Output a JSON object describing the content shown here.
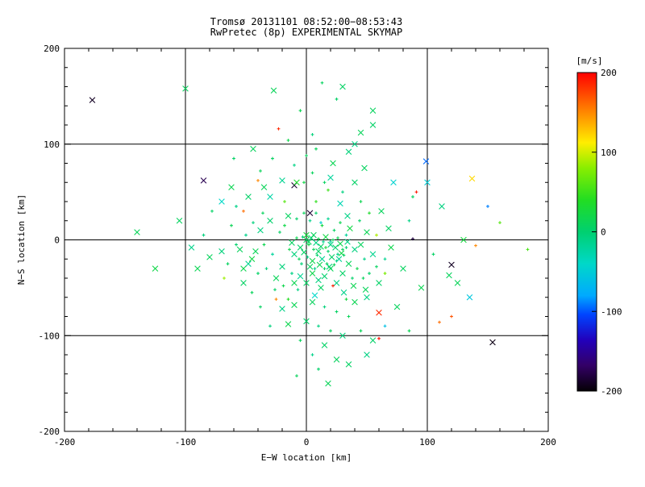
{
  "title": {
    "line1": "Tromsø 20131101 08:52:00−08:53:43",
    "line2": "RwPretec (8p) EXPERIMENTAL SKYMAP"
  },
  "axes": {
    "xlabel": "E−W location [km]",
    "ylabel": "N−S location [km]",
    "xlim": [
      -200,
      200
    ],
    "ylim": [
      -200,
      200
    ],
    "xticks": [
      -200,
      -100,
      0,
      100,
      200
    ],
    "yticks": [
      -200,
      -100,
      0,
      100,
      200
    ],
    "grid_lines": [
      -100,
      0,
      100
    ]
  },
  "colorbar": {
    "label": "[m/s]",
    "label_color": "#ee2200",
    "ticks": [
      200,
      100,
      0,
      -100,
      -200
    ],
    "min": -200,
    "max": 200,
    "stops": [
      {
        "v": 200,
        "c": "#ff0000"
      },
      {
        "v": 150,
        "c": "#ff8800"
      },
      {
        "v": 112,
        "c": "#ffee00"
      },
      {
        "v": 80,
        "c": "#88ee00"
      },
      {
        "v": 40,
        "c": "#22dd22"
      },
      {
        "v": 0,
        "c": "#00d070"
      },
      {
        "v": -40,
        "c": "#00d8c8"
      },
      {
        "v": -80,
        "c": "#00aaff"
      },
      {
        "v": -104,
        "c": "#0044ff"
      },
      {
        "v": -136,
        "c": "#2200bb"
      },
      {
        "v": -168,
        "c": "#330066"
      },
      {
        "v": -200,
        "c": "#050005"
      }
    ]
  },
  "chart_data": {
    "type": "scatter",
    "title": "Tromsø 20131101 08:52:00−08:53:43 — RwPretec (8p) EXPERIMENTAL SKYMAP",
    "xlabel": "E−W location [km]",
    "ylabel": "N−S location [km]",
    "xlim": [
      -200,
      200
    ],
    "ylim": [
      -200,
      200
    ],
    "value_unit": "m/s",
    "value_range": [
      -200,
      200
    ],
    "marker_codes": {
      "0": "plus",
      "1": "cross"
    },
    "point_format": [
      "x_km",
      "y_km",
      "velocity_ms",
      "marker"
    ],
    "points": [
      [
        -12,
        -3,
        8,
        1
      ],
      [
        -8,
        2,
        15,
        0
      ],
      [
        -5,
        -8,
        5,
        1
      ],
      [
        -3,
        3,
        -5,
        0
      ],
      [
        0,
        0,
        10,
        1
      ],
      [
        2,
        -5,
        20,
        0
      ],
      [
        4,
        2,
        0,
        1
      ],
      [
        6,
        -10,
        12,
        0
      ],
      [
        8,
        -3,
        -8,
        1
      ],
      [
        10,
        1,
        18,
        0
      ],
      [
        12,
        -7,
        6,
        1
      ],
      [
        14,
        -2,
        -12,
        0
      ],
      [
        16,
        3,
        22,
        1
      ],
      [
        18,
        -12,
        4,
        0
      ],
      [
        20,
        -5,
        -6,
        1
      ],
      [
        22,
        0,
        14,
        0
      ],
      [
        24,
        -8,
        2,
        1
      ],
      [
        26,
        -15,
        -10,
        0
      ],
      [
        28,
        -4,
        16,
        1
      ],
      [
        30,
        -10,
        8,
        0
      ],
      [
        -10,
        -15,
        -4,
        1
      ],
      [
        -6,
        -20,
        12,
        0
      ],
      [
        -2,
        -13,
        6,
        1
      ],
      [
        1,
        -18,
        -8,
        0
      ],
      [
        5,
        -22,
        18,
        1
      ],
      [
        9,
        -16,
        2,
        0
      ],
      [
        13,
        -20,
        -14,
        1
      ],
      [
        17,
        -25,
        10,
        0
      ],
      [
        21,
        -18,
        4,
        1
      ],
      [
        25,
        -22,
        -6,
        0
      ],
      [
        29,
        -14,
        20,
        1
      ],
      [
        33,
        -8,
        0,
        0
      ],
      [
        3,
        -28,
        8,
        1
      ],
      [
        7,
        -30,
        -12,
        0
      ],
      [
        11,
        -26,
        15,
        1
      ],
      [
        15,
        -30,
        5,
        0
      ],
      [
        19,
        -28,
        -5,
        1
      ],
      [
        23,
        -26,
        12,
        0
      ],
      [
        27,
        -20,
        -15,
        1
      ],
      [
        31,
        -16,
        8,
        0
      ],
      [
        0,
        5,
        25,
        1
      ],
      [
        -4,
        -25,
        -3,
        0
      ],
      [
        6,
        5,
        10,
        1
      ],
      [
        -14,
        -10,
        18,
        0
      ],
      [
        34,
        -2,
        -8,
        1
      ],
      [
        16,
        -8,
        30,
        0
      ],
      [
        10,
        -12,
        5,
        1
      ],
      [
        20,
        -2,
        -18,
        0
      ],
      [
        2,
        -2,
        8,
        1
      ],
      [
        26,
        2,
        14,
        0
      ],
      [
        -55,
        -10,
        10,
        1
      ],
      [
        -50,
        5,
        -12,
        0
      ],
      [
        -45,
        -20,
        22,
        1
      ],
      [
        -40,
        -35,
        5,
        0
      ],
      [
        -38,
        10,
        -8,
        1
      ],
      [
        -35,
        -5,
        16,
        0
      ],
      [
        -30,
        20,
        2,
        1
      ],
      [
        -28,
        -15,
        -20,
        0
      ],
      [
        -25,
        -40,
        12,
        1
      ],
      [
        -22,
        8,
        6,
        0
      ],
      [
        -20,
        -28,
        -4,
        1
      ],
      [
        -18,
        15,
        20,
        0
      ],
      [
        -15,
        25,
        8,
        1
      ],
      [
        -12,
        -35,
        -10,
        0
      ],
      [
        -10,
        -45,
        15,
        1
      ],
      [
        -8,
        22,
        3,
        0
      ],
      [
        -5,
        -38,
        -16,
        1
      ],
      [
        -2,
        28,
        10,
        0
      ],
      [
        0,
        -45,
        6,
        1
      ],
      [
        3,
        20,
        -12,
        0
      ],
      [
        5,
        -35,
        18,
        1
      ],
      [
        8,
        28,
        4,
        0
      ],
      [
        10,
        -42,
        -6,
        1
      ],
      [
        13,
        15,
        24,
        0
      ],
      [
        15,
        -38,
        2,
        1
      ],
      [
        18,
        22,
        -14,
        0
      ],
      [
        20,
        -30,
        12,
        1
      ],
      [
        23,
        10,
        7,
        0
      ],
      [
        25,
        -45,
        -9,
        1
      ],
      [
        28,
        18,
        16,
        0
      ],
      [
        30,
        -35,
        5,
        1
      ],
      [
        33,
        5,
        -18,
        0
      ],
      [
        35,
        -25,
        11,
        1
      ],
      [
        38,
        -40,
        3,
        0
      ],
      [
        40,
        -10,
        -7,
        1
      ],
      [
        42,
        -30,
        19,
        0
      ],
      [
        45,
        -5,
        9,
        1
      ],
      [
        48,
        -20,
        -11,
        0
      ],
      [
        50,
        8,
        14,
        1
      ],
      [
        52,
        -35,
        4,
        0
      ],
      [
        55,
        -15,
        -13,
        1
      ],
      [
        58,
        -28,
        8,
        0
      ],
      [
        36,
        12,
        21,
        1
      ],
      [
        -33,
        -30,
        -5,
        0
      ],
      [
        -42,
        -12,
        13,
        1
      ],
      [
        44,
        20,
        6,
        0
      ],
      [
        -48,
        -25,
        -15,
        1
      ],
      [
        47,
        -40,
        10,
        0
      ],
      [
        -52,
        -30,
        17,
        1
      ],
      [
        -58,
        -5,
        2,
        0
      ],
      [
        34,
        25,
        -10,
        1
      ],
      [
        -36,
        28,
        9,
        0
      ],
      [
        39,
        -48,
        15,
        1
      ],
      [
        -44,
        18,
        -6,
        0
      ],
      [
        49,
        -52,
        11,
        1
      ],
      [
        -26,
        -52,
        5,
        0
      ],
      [
        31,
        -55,
        -12,
        1
      ],
      [
        -19,
        -48,
        18,
        0
      ],
      [
        12,
        -50,
        7,
        1
      ],
      [
        -7,
        -52,
        -8,
        0
      ],
      [
        5,
        -65,
        10,
        1
      ],
      [
        15,
        -70,
        -5,
        0
      ],
      [
        -10,
        -68,
        14,
        1
      ],
      [
        25,
        -75,
        6,
        0
      ],
      [
        -20,
        -72,
        -10,
        1
      ],
      [
        35,
        -80,
        12,
        0
      ],
      [
        0,
        -85,
        4,
        1
      ],
      [
        10,
        -90,
        -8,
        0
      ],
      [
        -15,
        -88,
        16,
        1
      ],
      [
        20,
        -95,
        8,
        0
      ],
      [
        30,
        -100,
        -4,
        1
      ],
      [
        -5,
        -105,
        10,
        0
      ],
      [
        15,
        -110,
        5,
        1
      ],
      [
        5,
        -120,
        -12,
        0
      ],
      [
        25,
        -125,
        9,
        1
      ],
      [
        10,
        -135,
        3,
        0
      ],
      [
        18,
        -150,
        12,
        1
      ],
      [
        -30,
        -90,
        -6,
        0
      ],
      [
        40,
        -65,
        15,
        1
      ],
      [
        -38,
        -70,
        7,
        0
      ],
      [
        50,
        -60,
        -9,
        1
      ],
      [
        -45,
        -55,
        11,
        0
      ],
      [
        60,
        -45,
        5,
        1
      ],
      [
        65,
        -20,
        -14,
        0
      ],
      [
        70,
        -8,
        18,
        1
      ],
      [
        -65,
        -25,
        8,
        0
      ],
      [
        -70,
        -12,
        -5,
        1
      ],
      [
        -62,
        15,
        13,
        0
      ],
      [
        68,
        12,
        6,
        1
      ],
      [
        -58,
        35,
        -11,
        0
      ],
      [
        62,
        30,
        10,
        1
      ],
      [
        45,
        40,
        16,
        0
      ],
      [
        -48,
        45,
        4,
        1
      ],
      [
        30,
        50,
        -7,
        0
      ],
      [
        -35,
        55,
        12,
        1
      ],
      [
        15,
        60,
        8,
        0
      ],
      [
        -20,
        62,
        -15,
        1
      ],
      [
        5,
        70,
        10,
        0
      ],
      [
        40,
        60,
        5,
        1
      ],
      [
        -10,
        78,
        -9,
        0
      ],
      [
        22,
        80,
        14,
        1
      ],
      [
        -28,
        85,
        7,
        0
      ],
      [
        35,
        92,
        -4,
        1
      ],
      [
        8,
        95,
        11,
        0
      ],
      [
        -52,
        -45,
        6,
        1
      ],
      [
        13,
        164,
        8,
        0
      ],
      [
        -27,
        156,
        12,
        1
      ],
      [
        55,
        120,
        5,
        1
      ],
      [
        -100,
        158,
        10,
        1
      ],
      [
        40,
        100,
        -8,
        1
      ],
      [
        -5,
        135,
        15,
        0
      ],
      [
        30,
        160,
        6,
        1
      ],
      [
        55,
        135,
        9,
        1
      ],
      [
        5,
        110,
        -5,
        0
      ],
      [
        -15,
        104,
        18,
        0
      ],
      [
        25,
        147,
        4,
        0
      ],
      [
        45,
        112,
        11,
        1
      ],
      [
        -80,
        -18,
        10,
        1
      ],
      [
        -85,
        5,
        -6,
        0
      ],
      [
        -90,
        -30,
        14,
        1
      ],
      [
        -78,
        30,
        5,
        0
      ],
      [
        -95,
        -8,
        -12,
        1
      ],
      [
        -105,
        20,
        8,
        1
      ],
      [
        -125,
        -30,
        20,
        1
      ],
      [
        -140,
        8,
        12,
        1
      ],
      [
        80,
        -30,
        8,
        1
      ],
      [
        85,
        20,
        -10,
        0
      ],
      [
        95,
        -50,
        15,
        1
      ],
      [
        105,
        -15,
        5,
        0
      ],
      [
        112,
        35,
        -7,
        1
      ],
      [
        125,
        -45,
        12,
        1
      ],
      [
        88,
        45,
        6,
        0
      ],
      [
        100,
        60,
        -50,
        1
      ],
      [
        118,
        -37,
        10,
        1
      ],
      [
        130,
        0,
        25,
        1
      ],
      [
        140,
        -6,
        150,
        0
      ],
      [
        150,
        35,
        -90,
        0
      ],
      [
        160,
        18,
        60,
        0
      ],
      [
        183,
        -10,
        55,
        0
      ],
      [
        135,
        -60,
        -55,
        1
      ],
      [
        120,
        -80,
        170,
        0
      ],
      [
        35,
        -130,
        6,
        1
      ],
      [
        -8,
        -142,
        10,
        0
      ],
      [
        50,
        -120,
        -8,
        1
      ],
      [
        45,
        -95,
        12,
        0
      ],
      [
        55,
        -105,
        4,
        1
      ],
      [
        65,
        -90,
        -60,
        0
      ],
      [
        75,
        -70,
        9,
        1
      ],
      [
        85,
        -95,
        14,
        0
      ],
      [
        -177,
        146,
        -190,
        1
      ],
      [
        -85,
        62,
        -175,
        1
      ],
      [
        -23,
        116,
        185,
        0
      ],
      [
        99,
        82,
        -95,
        1
      ],
      [
        137,
        64,
        120,
        1
      ],
      [
        91,
        50,
        190,
        0
      ],
      [
        120,
        -26,
        -190,
        1
      ],
      [
        154,
        -107,
        -195,
        1
      ],
      [
        60,
        -76,
        185,
        1
      ],
      [
        22,
        -48,
        190,
        0
      ],
      [
        -40,
        62,
        150,
        0
      ],
      [
        -10,
        57,
        -185,
        1
      ],
      [
        3,
        28,
        -185,
        1
      ],
      [
        -52,
        30,
        160,
        0
      ],
      [
        88,
        1,
        -180,
        0
      ],
      [
        60,
        -103,
        195,
        0
      ],
      [
        110,
        -86,
        160,
        0
      ],
      [
        -60,
        85,
        5,
        0
      ],
      [
        -44,
        95,
        10,
        1
      ],
      [
        -70,
        40,
        -40,
        1
      ],
      [
        72,
        60,
        -45,
        1
      ],
      [
        8,
        40,
        45,
        0
      ],
      [
        -18,
        40,
        60,
        0
      ],
      [
        28,
        38,
        -30,
        1
      ],
      [
        52,
        28,
        35,
        0
      ],
      [
        -30,
        45,
        -25,
        1
      ],
      [
        18,
        52,
        50,
        0
      ],
      [
        -62,
        55,
        15,
        1
      ],
      [
        48,
        75,
        8,
        1
      ],
      [
        -38,
        72,
        12,
        0
      ],
      [
        -25,
        -62,
        150,
        0
      ],
      [
        12,
        18,
        -45,
        0
      ],
      [
        7,
        -58,
        -40,
        1
      ],
      [
        -2,
        60,
        20,
        0
      ],
      [
        20,
        65,
        -20,
        1
      ],
      [
        0,
        88,
        10,
        0
      ],
      [
        -8,
        60,
        35,
        1
      ],
      [
        33,
        -62,
        25,
        0
      ],
      [
        -15,
        -62,
        40,
        0
      ],
      [
        58,
        5,
        90,
        0
      ],
      [
        65,
        -35,
        75,
        0
      ],
      [
        -68,
        -40,
        85,
        0
      ]
    ]
  }
}
